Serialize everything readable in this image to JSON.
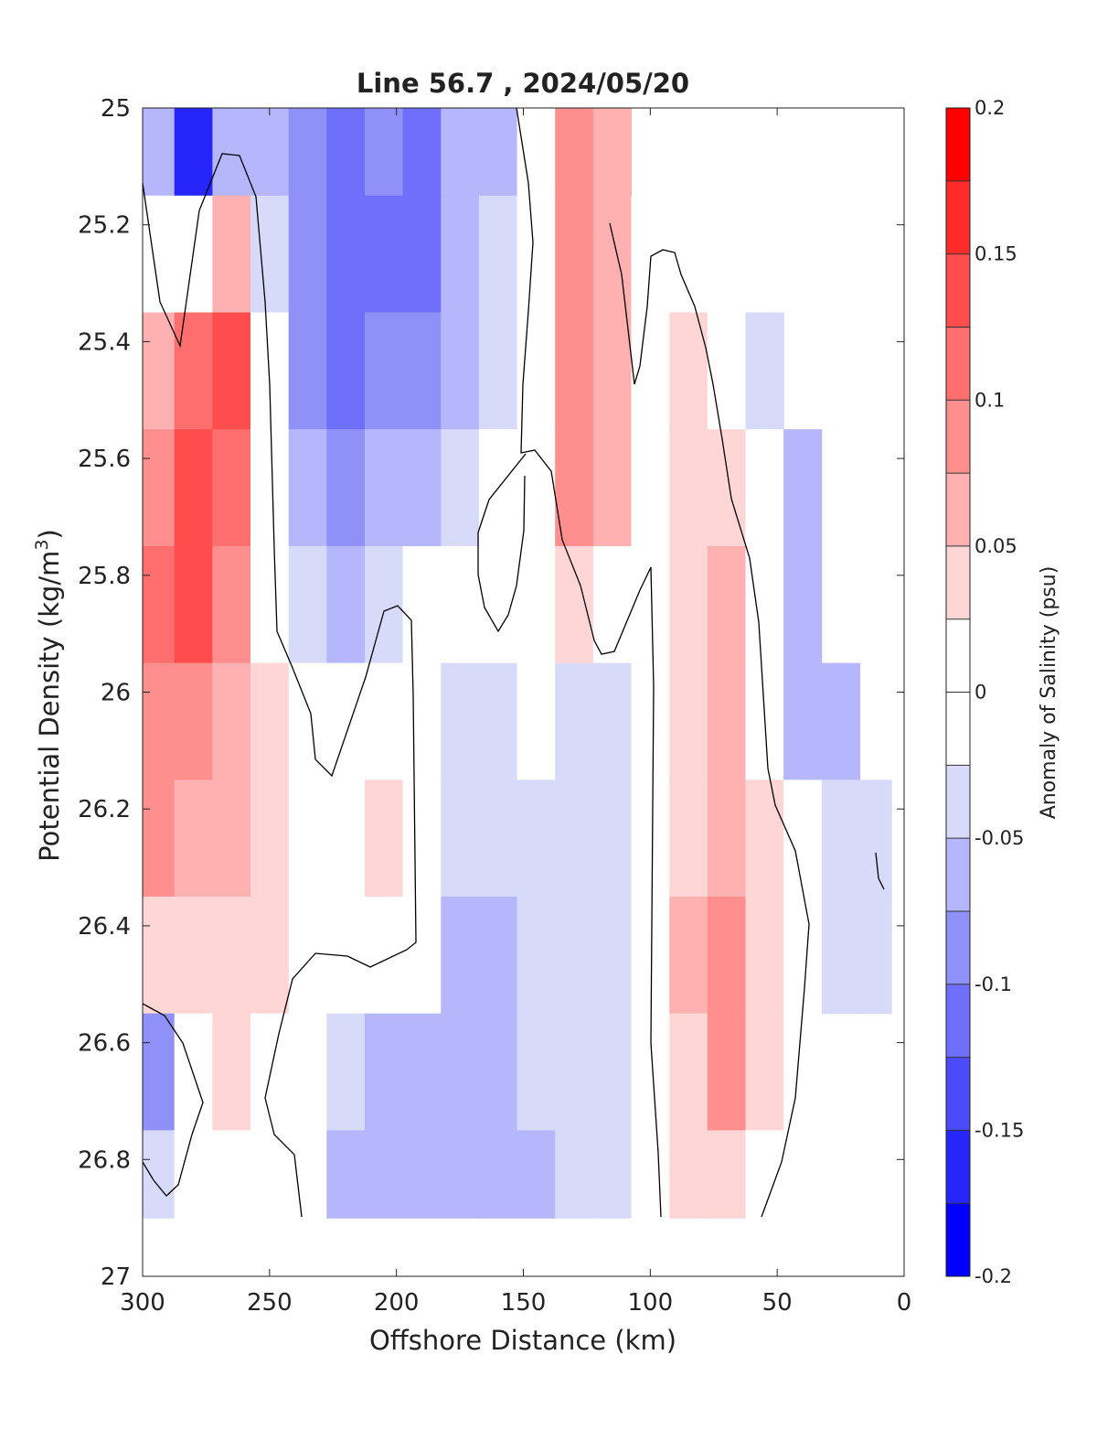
{
  "chart_data": {
    "type": "contour",
    "title": "Line 56.7 , 2024/05/20",
    "xlabel": "Offshore Distance (km)",
    "ylabel_prefix": "Potential Density (kg/m",
    "ylabel_sup": "3",
    "ylabel_suffix": ")",
    "xlim": [
      300,
      0
    ],
    "ylim": [
      27,
      25
    ],
    "x_ticks": [
      300,
      250,
      200,
      150,
      100,
      50,
      0
    ],
    "x_tick_labels": [
      "300",
      "250",
      "200",
      "150",
      "100",
      "50",
      "0"
    ],
    "y_ticks": [
      25,
      25.2,
      25.4,
      25.6,
      25.8,
      26,
      26.2,
      26.4,
      26.6,
      26.8,
      27
    ],
    "y_tick_labels": [
      "25",
      "25.2",
      "25.4",
      "25.6",
      "25.8",
      "26",
      "26.2",
      "26.4",
      "26.6",
      "26.8",
      "27"
    ],
    "colorbar": {
      "label": "Anomaly of Salinity (psu)",
      "range": [
        -0.2,
        0.2
      ],
      "level_step": 0.025,
      "ticks": [
        0.2,
        0.15,
        0.1,
        0.05,
        0,
        -0.05,
        -0.1,
        -0.15,
        -0.2
      ],
      "tick_labels": [
        "0.2",
        "0.15",
        "0.1",
        "0.05",
        "0",
        "-0.05",
        "-0.1",
        "-0.15",
        "-0.2"
      ],
      "colors_top_to_bottom": [
        "#ff0000",
        "#ff2a2a",
        "#ff4c4c",
        "#ff6e6e",
        "#ff8f8f",
        "#ffb1b1",
        "#fed6d6",
        "#ffffff",
        "#ffffff",
        "#d8daf9",
        "#b5b6fb",
        "#8f91f9",
        "#6f6ffb",
        "#4c4bfb",
        "#2626fb",
        "#0000ff"
      ]
    },
    "sampled_grid": {
      "x_km": [
        295,
        280,
        265,
        250,
        235,
        220,
        205,
        190,
        175,
        160,
        145,
        130,
        115,
        100,
        85,
        70,
        55,
        40,
        25,
        10
      ],
      "density": [
        25.05,
        25.25,
        25.45,
        25.65,
        25.85,
        26.05,
        26.25,
        26.45,
        26.65,
        26.85
      ],
      "salinity_anomaly": [
        [
          -0.06,
          -0.16,
          -0.06,
          -0.05,
          -0.09,
          -0.1,
          -0.09,
          -0.12,
          -0.06,
          -0.05,
          0.0,
          0.08,
          0.06,
          null,
          null,
          null,
          null,
          null,
          null,
          null
        ],
        [
          0.0,
          0.02,
          0.07,
          -0.03,
          -0.09,
          -0.11,
          -0.1,
          -0.11,
          -0.06,
          -0.03,
          0.0,
          0.1,
          0.06,
          0.0,
          0.0,
          null,
          null,
          null,
          null,
          null
        ],
        [
          0.06,
          0.12,
          0.13,
          0.0,
          -0.08,
          -0.1,
          -0.09,
          -0.09,
          -0.06,
          -0.04,
          0.0,
          0.1,
          0.06,
          0.0,
          0.04,
          0.02,
          -0.04,
          null,
          null,
          null
        ],
        [
          0.09,
          0.14,
          0.11,
          0.0,
          -0.07,
          -0.08,
          -0.07,
          -0.05,
          -0.03,
          0.0,
          0.0,
          0.08,
          0.06,
          0.0,
          0.05,
          0.05,
          -0.02,
          -0.07,
          null,
          null
        ],
        [
          0.11,
          0.13,
          0.08,
          0.0,
          -0.04,
          -0.06,
          -0.04,
          -0.02,
          0.0,
          0.0,
          0.0,
          0.04,
          0.0,
          0.0,
          0.05,
          0.06,
          0.0,
          -0.05,
          null,
          null
        ],
        [
          0.09,
          0.09,
          0.07,
          0.04,
          0.0,
          -0.02,
          0.0,
          0.0,
          -0.03,
          -0.03,
          -0.02,
          -0.03,
          -0.03,
          0.0,
          0.04,
          0.06,
          0.02,
          -0.06,
          -0.07,
          null
        ],
        [
          0.08,
          0.07,
          0.06,
          0.04,
          0.02,
          0.0,
          0.04,
          0.0,
          -0.04,
          -0.04,
          -0.03,
          -0.03,
          -0.04,
          0.0,
          0.05,
          0.07,
          0.04,
          0.0,
          -0.04,
          -0.03
        ],
        [
          0.03,
          0.03,
          0.04,
          0.03,
          0.02,
          0.0,
          0.0,
          0.0,
          -0.05,
          -0.06,
          -0.04,
          -0.03,
          -0.03,
          0.0,
          0.06,
          0.09,
          0.05,
          0.0,
          -0.03,
          -0.03
        ],
        [
          -0.08,
          0.0,
          0.03,
          0.02,
          0.0,
          -0.04,
          -0.05,
          -0.06,
          -0.07,
          -0.06,
          -0.04,
          -0.03,
          -0.03,
          0.0,
          0.05,
          0.08,
          0.04,
          0.0,
          null,
          null
        ],
        [
          -0.04,
          0.0,
          0.0,
          0.0,
          0.0,
          -0.05,
          -0.06,
          -0.06,
          -0.06,
          -0.06,
          -0.06,
          -0.04,
          -0.03,
          0.0,
          0.03,
          0.05,
          0.02,
          0.0,
          null,
          null
        ]
      ]
    }
  }
}
